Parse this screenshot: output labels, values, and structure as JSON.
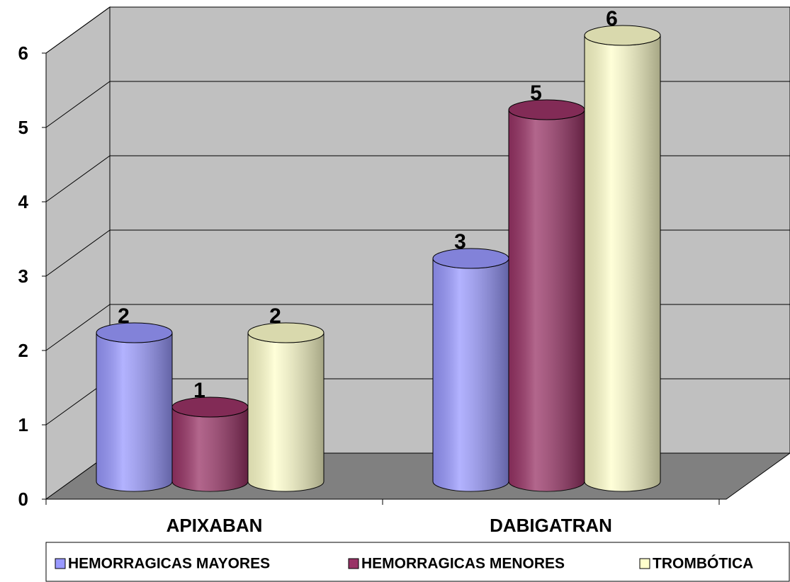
{
  "chart_data": {
    "type": "bar3d",
    "categories": [
      "APIXABAN",
      "DABIGATRAN"
    ],
    "series": [
      {
        "name": "HEMORRAGICAS MAYORES",
        "color": "#9999ff",
        "values": [
          2,
          3
        ]
      },
      {
        "name": "HEMORRAGICAS MENORES",
        "color": "#993366",
        "values": [
          1,
          5
        ]
      },
      {
        "name": "TROMBÓTICA",
        "color": "#ffffcc",
        "values": [
          2,
          6
        ]
      }
    ],
    "ylim": [
      0,
      6
    ],
    "yticks": [
      0,
      1,
      2,
      3,
      4,
      5,
      6
    ],
    "grid": true,
    "legend": "bottom"
  }
}
